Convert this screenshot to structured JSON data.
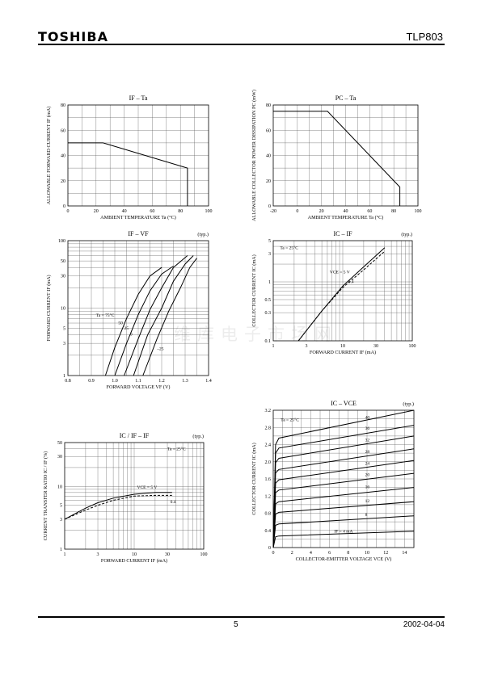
{
  "header": {
    "brand": "TOSHIBA",
    "part": "TLP803"
  },
  "footer": {
    "page": "5",
    "date": "2002-04-04"
  },
  "watermark": "维库电子市场网",
  "charts": [
    {
      "id": "c1",
      "title": "IF – Ta",
      "typ": "",
      "ylabel": "ALLOWABLE FORWARD CURRENT   IF   (mA)",
      "xlabel": "AMBIENT TEMPERATURE   Ta   (°C)",
      "xscale": "linear",
      "xlim": [
        0,
        100
      ],
      "yscale": "linear",
      "ylim": [
        0,
        80
      ],
      "xticks": [
        0,
        20,
        40,
        60,
        80,
        100
      ],
      "xticklabels": [
        "0",
        "20",
        "40",
        "60",
        "80",
        "100"
      ],
      "yticks": [
        0,
        20,
        40,
        60,
        80
      ],
      "yticklabels": [
        "0",
        "20",
        "40",
        "60",
        "80"
      ],
      "grid": true,
      "gridx": [
        10,
        20,
        30,
        40,
        50,
        60,
        70,
        80,
        90
      ],
      "gridy": [
        10,
        20,
        30,
        40,
        50,
        60,
        70
      ],
      "annotations": [],
      "series": [
        {
          "x": [
            0,
            25,
            85,
            85
          ],
          "y": [
            50,
            50,
            30,
            0
          ],
          "style": "solid"
        }
      ]
    },
    {
      "id": "c2",
      "title": "PC – Ta",
      "typ": "",
      "ylabel": "ALLOWABLE COLLECTOR POWER DISSIPATION   PC   (mW)",
      "xlabel": "AMBIENT TEMPERATURE   Ta   (°C)",
      "xscale": "linear",
      "xlim": [
        -20,
        100
      ],
      "yscale": "linear",
      "ylim": [
        0,
        80
      ],
      "xticks": [
        -20,
        0,
        20,
        40,
        60,
        80,
        100
      ],
      "xticklabels": [
        "-20",
        "0",
        "20",
        "40",
        "60",
        "80",
        "100"
      ],
      "yticks": [
        0,
        20,
        40,
        60,
        80
      ],
      "yticklabels": [
        "0",
        "20",
        "40",
        "60",
        "80"
      ],
      "grid": true,
      "gridx": [
        -10,
        0,
        10,
        20,
        30,
        40,
        50,
        60,
        70,
        80,
        90
      ],
      "gridy": [
        10,
        20,
        30,
        40,
        50,
        60,
        70
      ],
      "annotations": [],
      "series": [
        {
          "x": [
            -20,
            25,
            85,
            85
          ],
          "y": [
            75,
            75,
            15,
            0
          ],
          "style": "solid"
        }
      ]
    },
    {
      "id": "c3",
      "title": "IF – VF",
      "typ": "(typ.)",
      "ylabel": "FORWARD CURRENT   IF   (mA)",
      "xlabel": "FORWARD VOLTAGE   VF   (V)",
      "xscale": "linear",
      "xlim": [
        0.8,
        1.4
      ],
      "yscale": "log",
      "ylim": [
        1,
        100
      ],
      "xticks": [
        0.8,
        0.9,
        1.0,
        1.1,
        1.2,
        1.3,
        1.4
      ],
      "xticklabels": [
        "0.8",
        "0.9",
        "1.0",
        "1.1",
        "1.2",
        "1.3",
        "1.4"
      ],
      "yticks": [
        1,
        3,
        5,
        10,
        30,
        50,
        100
      ],
      "yticklabels": [
        "1",
        "3",
        "5",
        "10",
        "30",
        "50",
        "100"
      ],
      "grid": true,
      "gridx": [
        0.85,
        0.9,
        0.95,
        1.0,
        1.05,
        1.1,
        1.15,
        1.2,
        1.25,
        1.3,
        1.35
      ],
      "gridy": [
        2,
        3,
        4,
        5,
        6,
        7,
        8,
        9,
        10,
        20,
        30,
        40,
        50,
        60,
        70,
        80,
        90
      ],
      "annotations": [
        {
          "text": "Ta = 75°C",
          "x": 0.92,
          "y": 7.5
        },
        {
          "text": "50",
          "x": 1.015,
          "y": 5.8
        },
        {
          "text": "25",
          "x": 1.04,
          "y": 4.8
        },
        {
          "text": "0",
          "x": 1.065,
          "y": 3.9
        },
        {
          "text": "–25",
          "x": 1.18,
          "y": 2.4
        }
      ],
      "series": [
        {
          "name": "75",
          "x": [
            0.96,
            1.0,
            1.05,
            1.1,
            1.15,
            1.2
          ],
          "y": [
            1,
            2.6,
            7,
            16,
            30,
            40
          ],
          "style": "solid"
        },
        {
          "name": "50",
          "x": [
            1.0,
            1.05,
            1.1,
            1.15,
            1.2,
            1.25
          ],
          "y": [
            1,
            3,
            8,
            18,
            32,
            42
          ],
          "style": "solid"
        },
        {
          "name": "25",
          "x": [
            1.04,
            1.1,
            1.15,
            1.2,
            1.25,
            1.31
          ],
          "y": [
            1,
            3.5,
            9.5,
            20,
            40,
            60
          ],
          "style": "solid"
        },
        {
          "name": "0",
          "x": [
            1.08,
            1.14,
            1.2,
            1.25,
            1.3,
            1.335
          ],
          "y": [
            1,
            4,
            10,
            25,
            45,
            60
          ],
          "style": "solid"
        },
        {
          "name": "-25",
          "x": [
            1.12,
            1.18,
            1.23,
            1.28,
            1.32,
            1.35
          ],
          "y": [
            1,
            3.5,
            9,
            20,
            40,
            55
          ],
          "style": "solid"
        }
      ]
    },
    {
      "id": "c4",
      "title": "IC – IF",
      "typ": "(typ.)",
      "ylabel": "COLLECTOR CURRENT   IC   (mA)",
      "xlabel": "FORWARD CURRENT   IF   (mA)",
      "xscale": "log",
      "xlim": [
        1,
        100
      ],
      "yscale": "log",
      "ylim": [
        0.1,
        5
      ],
      "xticks": [
        1,
        3,
        10,
        30,
        100
      ],
      "xticklabels": [
        "1",
        "3",
        "10",
        "30",
        "100"
      ],
      "yticks": [
        0.1,
        0.3,
        0.5,
        1,
        3,
        5
      ],
      "yticklabels": [
        "0.1",
        "0.3",
        "0.5",
        "1",
        "3",
        "5"
      ],
      "grid": true,
      "gridx": [
        2,
        3,
        4,
        5,
        6,
        7,
        8,
        9,
        10,
        20,
        30,
        40,
        50,
        60,
        70,
        80,
        90
      ],
      "gridy": [
        0.2,
        0.3,
        0.4,
        0.5,
        0.6,
        0.7,
        0.8,
        0.9,
        1,
        2,
        3,
        4
      ],
      "annotations": [
        {
          "text": "Ta = 25°C",
          "x": 1.25,
          "y": 3.6
        },
        {
          "text": "VCE = 5 V",
          "x": 6.5,
          "y": 1.4
        },
        {
          "text": "0.4",
          "x": 12,
          "y": 0.95
        }
      ],
      "series": [
        {
          "name": "VCE = 5 V",
          "x": [
            2.3,
            5,
            10,
            20,
            40
          ],
          "y": [
            0.1,
            0.32,
            0.85,
            1.8,
            3.8
          ],
          "style": "solid"
        },
        {
          "name": "0.4",
          "x": [
            2.3,
            5,
            10,
            20,
            40
          ],
          "y": [
            0.1,
            0.32,
            0.8,
            1.6,
            3.3
          ],
          "style": "dashed"
        }
      ]
    },
    {
      "id": "c5",
      "title": "IC / IF – IF",
      "typ": "(typ.)",
      "ylabel": "CURRENT TRANSFER RATIO   IC / IF   (%)",
      "xlabel": "FORWARD CURRENT   IF   (mA)",
      "xscale": "log",
      "xlim": [
        1,
        100
      ],
      "yscale": "log",
      "ylim": [
        1,
        50
      ],
      "xticks": [
        1,
        3,
        10,
        30,
        100
      ],
      "xticklabels": [
        "1",
        "3",
        "10",
        "30",
        "100"
      ],
      "yticks": [
        1,
        3,
        5,
        10,
        30,
        50
      ],
      "yticklabels": [
        "1",
        "3",
        "5",
        "10",
        "30",
        "50"
      ],
      "grid": true,
      "gridx": [
        2,
        3,
        4,
        5,
        6,
        7,
        8,
        9,
        10,
        20,
        30,
        40,
        50,
        60,
        70,
        80,
        90
      ],
      "gridy": [
        2,
        3,
        4,
        5,
        6,
        7,
        8,
        9,
        10,
        20,
        30,
        40
      ],
      "annotations": [
        {
          "text": "Ta = 25°C",
          "x": 30,
          "y": 38
        },
        {
          "text": "VCE = 5 V",
          "x": 11,
          "y": 9.2
        },
        {
          "text": "0.4",
          "x": 33,
          "y": 5.4
        }
      ],
      "series": [
        {
          "name": "VCE = 5 V",
          "x": [
            1,
            2,
            3,
            5,
            10,
            20,
            35
          ],
          "y": [
            3,
            4.5,
            5.5,
            6.5,
            7.5,
            8,
            8
          ],
          "style": "solid"
        },
        {
          "name": "0.4",
          "x": [
            1,
            2,
            3,
            5,
            10,
            20,
            35
          ],
          "y": [
            3,
            4.2,
            5,
            6,
            7,
            7.2,
            7.2
          ],
          "style": "dashed"
        }
      ]
    },
    {
      "id": "c6",
      "title": "IC – VCE",
      "typ": "(typ.)",
      "ylabel": "COLLECTOR CURRENT   IC   (mA)",
      "xlabel": "COLLECTOR-EMITTER VOLTAGE   VCE   (V)",
      "xscale": "linear",
      "xlim": [
        0,
        15
      ],
      "yscale": "linear",
      "ylim": [
        0,
        3.2
      ],
      "xticks": [
        0,
        2,
        4,
        6,
        8,
        10,
        12,
        14
      ],
      "xticklabels": [
        "0",
        "2",
        "4",
        "6",
        "8",
        "10",
        "12",
        "14"
      ],
      "yticks": [
        0,
        0.4,
        0.8,
        1.2,
        1.6,
        2.0,
        2.4,
        2.8,
        3.2
      ],
      "yticklabels": [
        "0",
        "0.4",
        "0.8",
        "1.2",
        "1.6",
        "2.0",
        "2.4",
        "2.8",
        "3.2"
      ],
      "grid": true,
      "gridx": [
        1,
        2,
        3,
        4,
        5,
        6,
        7,
        8,
        9,
        10,
        11,
        12,
        13,
        14
      ],
      "gridy": [
        0.2,
        0.4,
        0.6,
        0.8,
        1.0,
        1.2,
        1.4,
        1.6,
        1.8,
        2.0,
        2.2,
        2.4,
        2.6,
        2.8,
        3.0
      ],
      "annotations": [
        {
          "text": "Ta = 25°C",
          "x": 0.8,
          "y": 2.95
        },
        {
          "text": "40",
          "x": 9.8,
          "y": 3.0
        },
        {
          "text": "36",
          "x": 9.8,
          "y": 2.75
        },
        {
          "text": "32",
          "x": 9.8,
          "y": 2.48
        },
        {
          "text": "28",
          "x": 9.8,
          "y": 2.2
        },
        {
          "text": "24",
          "x": 9.8,
          "y": 1.93
        },
        {
          "text": "20",
          "x": 9.8,
          "y": 1.67
        },
        {
          "text": "16",
          "x": 9.8,
          "y": 1.38
        },
        {
          "text": "12",
          "x": 9.8,
          "y": 1.05
        },
        {
          "text": "8",
          "x": 9.8,
          "y": 0.73
        },
        {
          "text": "IF = 4 mA",
          "x": 6.5,
          "y": 0.35
        }
      ],
      "series": [
        {
          "name": "40",
          "x": [
            0,
            0.25,
            0.6,
            15
          ],
          "y": [
            0,
            2.4,
            2.55,
            3.2
          ],
          "style": "solid"
        },
        {
          "name": "36",
          "x": [
            0,
            0.25,
            0.6,
            15
          ],
          "y": [
            0,
            2.2,
            2.32,
            2.85
          ],
          "style": "solid"
        },
        {
          "name": "32",
          "x": [
            0,
            0.25,
            0.6,
            15
          ],
          "y": [
            0,
            1.98,
            2.08,
            2.6
          ],
          "style": "solid"
        },
        {
          "name": "28",
          "x": [
            0,
            0.25,
            0.6,
            15
          ],
          "y": [
            0,
            1.74,
            1.82,
            2.3
          ],
          "style": "solid"
        },
        {
          "name": "24",
          "x": [
            0,
            0.25,
            0.6,
            15
          ],
          "y": [
            0,
            1.5,
            1.58,
            2.03
          ],
          "style": "solid"
        },
        {
          "name": "20",
          "x": [
            0,
            0.25,
            0.6,
            15
          ],
          "y": [
            0,
            1.28,
            1.34,
            1.73
          ],
          "style": "solid"
        },
        {
          "name": "16",
          "x": [
            0,
            0.25,
            0.6,
            15
          ],
          "y": [
            0,
            1.02,
            1.07,
            1.4
          ],
          "style": "solid"
        },
        {
          "name": "12",
          "x": [
            0,
            0.25,
            0.6,
            15
          ],
          "y": [
            0,
            0.78,
            0.82,
            1.07
          ],
          "style": "solid"
        },
        {
          "name": "8",
          "x": [
            0,
            0.25,
            0.6,
            15
          ],
          "y": [
            0,
            0.52,
            0.55,
            0.74
          ],
          "style": "solid"
        },
        {
          "name": "4",
          "x": [
            0,
            0.25,
            0.6,
            15
          ],
          "y": [
            0,
            0.25,
            0.27,
            0.38
          ],
          "style": "solid"
        }
      ]
    }
  ]
}
